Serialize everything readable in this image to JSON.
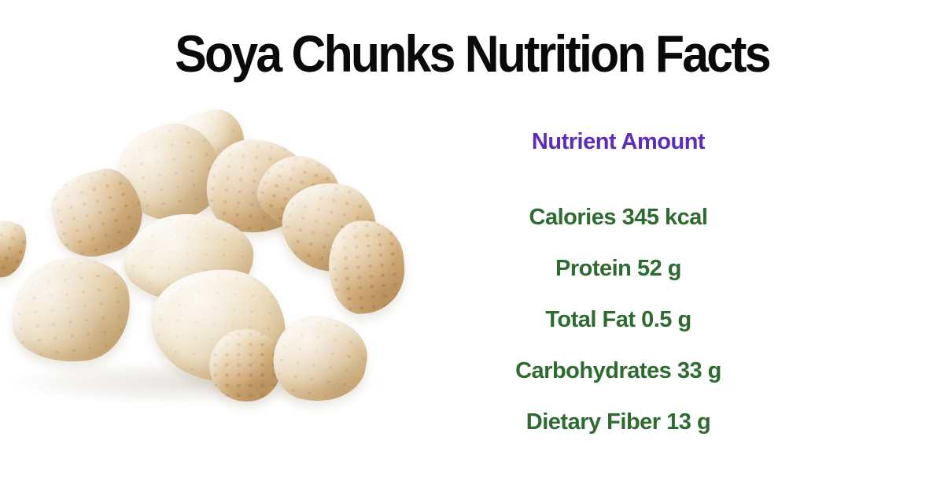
{
  "title": "Soya Chunks Nutrition Facts",
  "photo": {
    "alt": "Pile of soya chunks on white background"
  },
  "nutrition": {
    "header": "Nutrient Amount",
    "rows": [
      {
        "nutrient": "Calories",
        "amount": "345 kcal"
      },
      {
        "nutrient": "Protein",
        "amount": "52 g"
      },
      {
        "nutrient": "Total Fat",
        "amount": "0.5 g"
      },
      {
        "nutrient": "Carbohydrates",
        "amount": "33 g"
      },
      {
        "nutrient": "Dietary Fiber",
        "amount": "13 g"
      }
    ]
  },
  "colors": {
    "title": "#0a0a0a",
    "header": "#5b2db8",
    "rows": "#2e6b30",
    "background": "#ffffff"
  }
}
